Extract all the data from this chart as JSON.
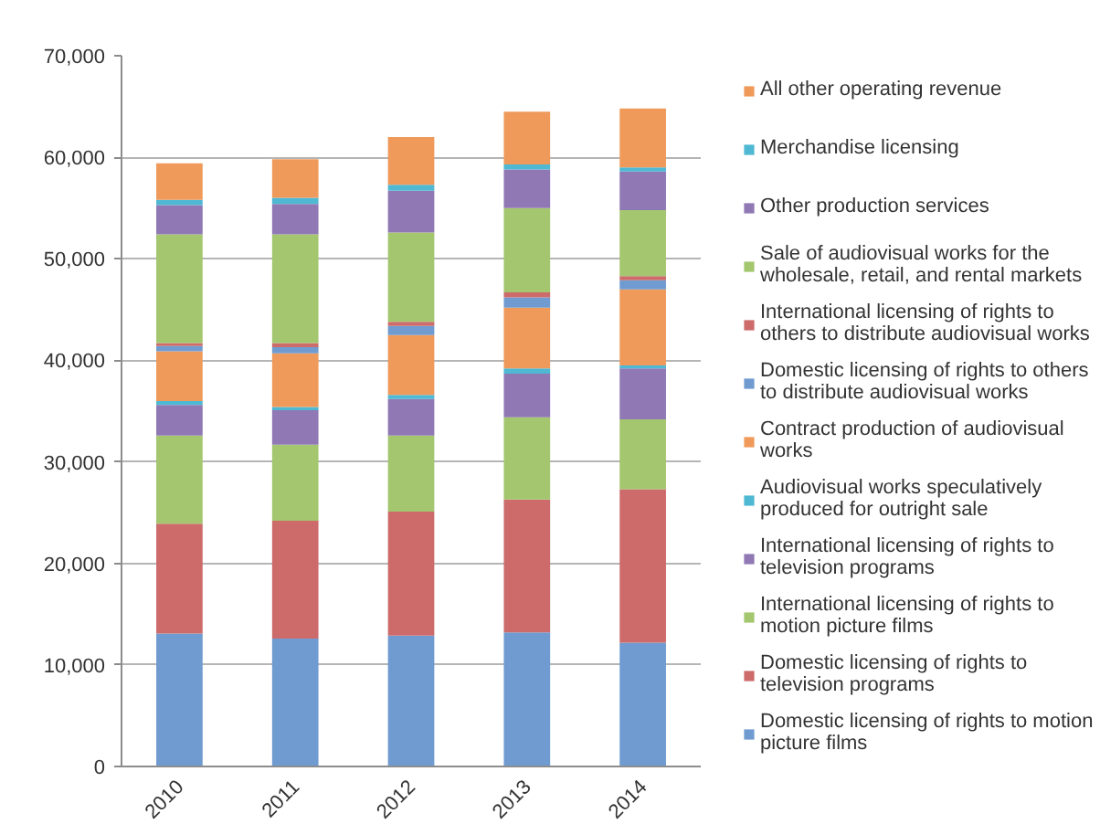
{
  "chart_data": {
    "type": "bar",
    "stacked": true,
    "categories": [
      "2010",
      "2011",
      "2012",
      "2013",
      "2014"
    ],
    "ylim": [
      0,
      70000
    ],
    "yticks": [
      0,
      {
        "value": 10000,
        "label": "10,000"
      },
      {
        "value": 20000,
        "label": "20,000"
      },
      {
        "value": 30000,
        "label": "30,000"
      },
      {
        "value": 40000,
        "label": "40,000"
      },
      {
        "value": 50000,
        "label": "50,000"
      },
      {
        "value": 60000,
        "label": "60,000"
      },
      {
        "value": 70000,
        "label": "70,000"
      }
    ],
    "grid": "y",
    "legend": "right",
    "series": [
      {
        "name": "Domestic licensing of rights to motion picture films",
        "color": "#6f9bd1",
        "values": [
          13100,
          12600,
          12900,
          13200,
          12200
        ]
      },
      {
        "name": "Domestic licensing of rights to television programs",
        "color": "#cd6b6b",
        "values": [
          10800,
          11600,
          12200,
          13100,
          15100
        ]
      },
      {
        "name": "International licensing of rights to motion picture films",
        "color": "#a3c66e",
        "values": [
          8700,
          7500,
          7500,
          8100,
          6900
        ]
      },
      {
        "name": "International licensing of rights to television programs",
        "color": "#8f78b4",
        "values": [
          3000,
          3400,
          3600,
          4300,
          5000
        ]
      },
      {
        "name": "Audiovisual works speculatively produced for outright sale",
        "color": "#4fb8d3",
        "values": [
          400,
          300,
          400,
          500,
          300
        ]
      },
      {
        "name": "Contract production of audiovisual works",
        "color": "#ef9a5a",
        "values": [
          4900,
          5300,
          5900,
          6000,
          7500
        ]
      },
      {
        "name": "Domestic licensing of rights to others to distribute audiovisual works",
        "color": "#6f9bd1",
        "values": [
          500,
          600,
          900,
          1000,
          900
        ]
      },
      {
        "name": "International licensing of rights to others to distribute audiovisual works",
        "color": "#cd6b6b",
        "values": [
          300,
          400,
          400,
          500,
          400
        ]
      },
      {
        "name": "Sale of audiovisual works for the wholesale, retail, and rental markets",
        "color": "#a3c66e",
        "values": [
          10700,
          10700,
          8800,
          8300,
          6500
        ]
      },
      {
        "name": "Other production services",
        "color": "#8f78b4",
        "values": [
          2900,
          3000,
          4100,
          3800,
          3800
        ]
      },
      {
        "name": "Merchandise licensing",
        "color": "#4fb8d3",
        "values": [
          500,
          600,
          600,
          500,
          400
        ]
      },
      {
        "name": "All other operating revenue",
        "color": "#ef9a5a",
        "values": [
          3600,
          3800,
          4700,
          5200,
          5800
        ]
      }
    ]
  }
}
